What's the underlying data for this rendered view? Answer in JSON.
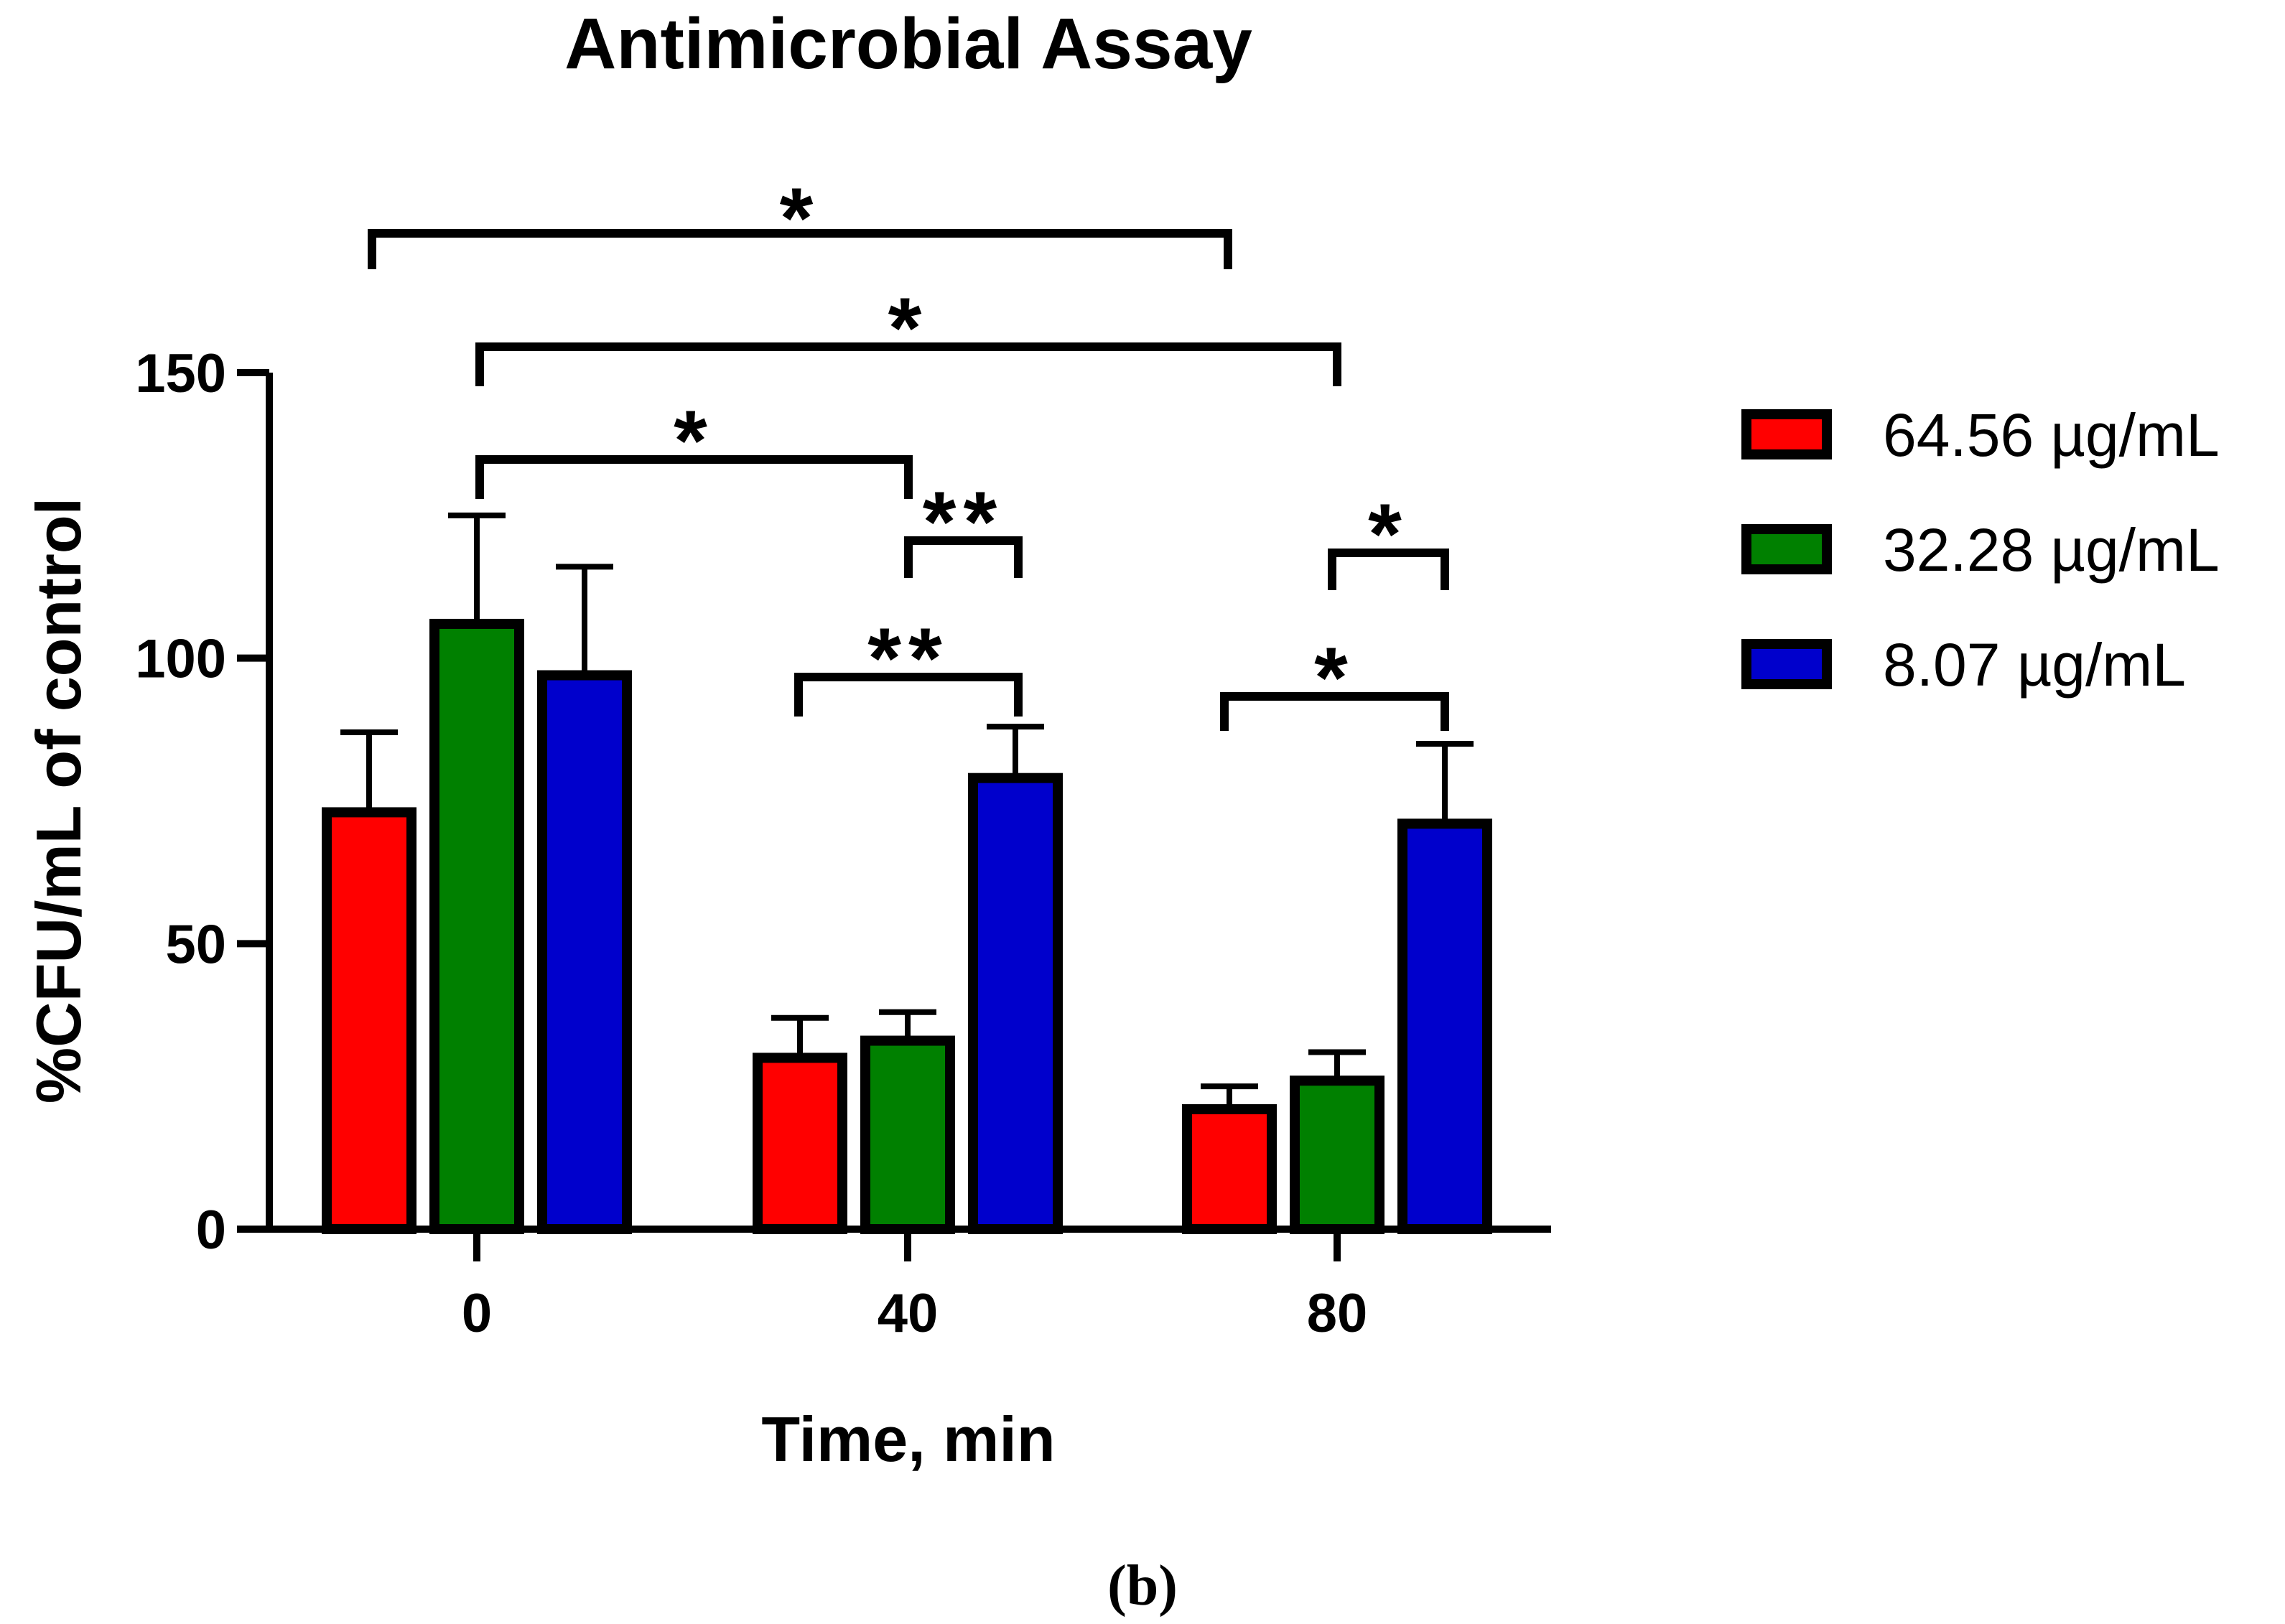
{
  "chart_data": {
    "type": "bar",
    "title": "Antimicrobial Assay",
    "xlabel": "Time, min",
    "ylabel": "%CFU/mL of control",
    "categories": [
      "0",
      "40",
      "80"
    ],
    "ylim": [
      0,
      150
    ],
    "yticks": [
      "0",
      "50",
      "100",
      "150"
    ],
    "series": [
      {
        "name": "64.56 µg/mL",
        "color": "#ff0000",
        "values": [
          73,
          30,
          21
        ],
        "errors": [
          14,
          7,
          4
        ]
      },
      {
        "name": "32.28 µg/mL",
        "color": "#008000",
        "values": [
          106,
          33,
          26
        ],
        "errors": [
          19,
          5,
          5
        ]
      },
      {
        "name": "8.07 µg/mL",
        "color": "#0000cc",
        "values": [
          97,
          79,
          71
        ],
        "errors": [
          19,
          9,
          14
        ]
      }
    ],
    "significance": [
      {
        "from": "0 / 64.56 µg/mL",
        "to": "80 / 64.56 µg/mL",
        "label": "*"
      },
      {
        "from": "0 / 32.28 µg/mL",
        "to": "80 / 32.28 µg/mL",
        "label": "*"
      },
      {
        "from": "0 / 32.28 µg/mL",
        "to": "40 / 32.28 µg/mL",
        "label": "*"
      },
      {
        "from": "40 / 32.28 µg/mL",
        "to": "40 / 8.07 µg/mL",
        "label": "**"
      },
      {
        "from": "40 / 64.56 µg/mL",
        "to": "40 / 8.07 µg/mL",
        "label": "**"
      },
      {
        "from": "80 / 32.28 µg/mL",
        "to": "80 / 8.07 µg/mL",
        "label": "*"
      },
      {
        "from": "80 / 64.56 µg/mL",
        "to": "80 / 8.07 µg/mL",
        "label": "*"
      }
    ],
    "legend": "right",
    "grid": false
  },
  "panel_label": "(b)"
}
